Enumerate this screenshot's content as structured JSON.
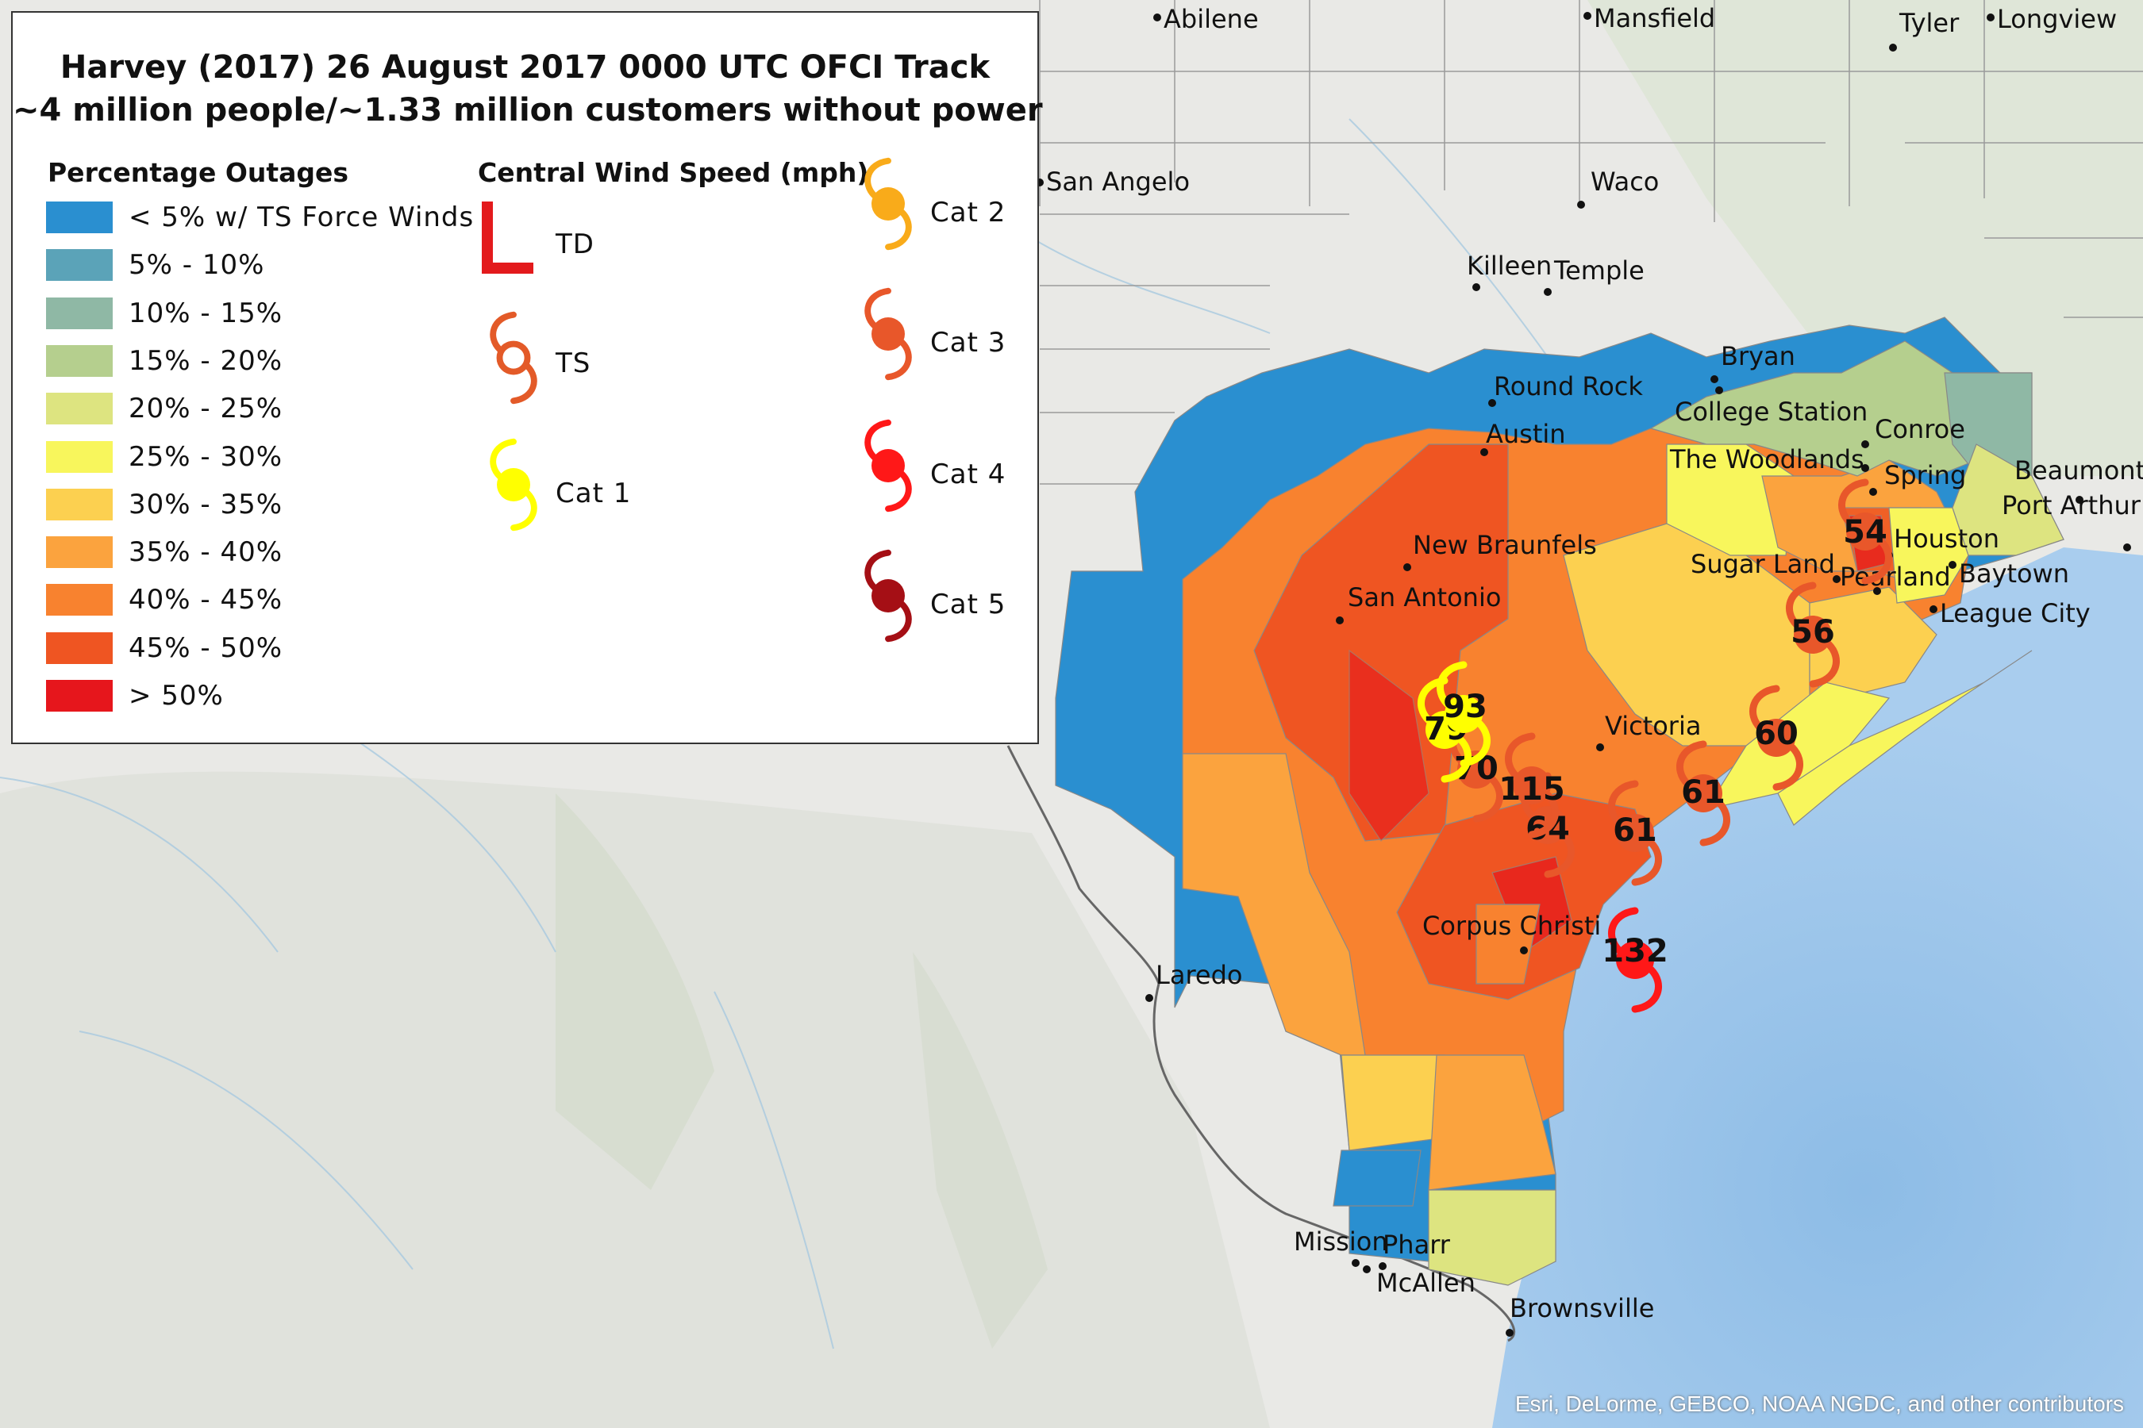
{
  "title_line1": "Harvey (2017) 26 August 2017 0000 UTC OFCI Track",
  "title_line2": "~4 million people/~1.33 million customers without power",
  "legend": {
    "outage_heading": "Percentage Outages",
    "outage_classes": [
      {
        "label": "< 5% w/ TS Force Winds",
        "color": "#2a8fd0"
      },
      {
        "label": "5% - 10%",
        "color": "#5ba3b8"
      },
      {
        "label": "10% - 15%",
        "color": "#8fb8a5"
      },
      {
        "label": "15% - 20%",
        "color": "#b5cf8e"
      },
      {
        "label": "20% - 25%",
        "color": "#dde480"
      },
      {
        "label": "25% - 30%",
        "color": "#f8f65c"
      },
      {
        "label": "30% - 35%",
        "color": "#fcd050"
      },
      {
        "label": "35% - 40%",
        "color": "#fba33e"
      },
      {
        "label": "40% - 45%",
        "color": "#f8822f"
      },
      {
        "label": "45% - 50%",
        "color": "#ef5522"
      },
      {
        "label": "> 50%",
        "color": "#e6161c"
      }
    ],
    "wind_heading": "Central Wind Speed (mph)",
    "wind_classes": [
      {
        "label": "TD",
        "color": "#e31a1c",
        "icon": "low-L-icon"
      },
      {
        "label": "TS",
        "color": "#e35a28",
        "icon": "tropical-storm-icon"
      },
      {
        "label": "Cat 1",
        "color": "#ffff00",
        "icon": "hurricane-cat1-icon"
      },
      {
        "label": "Cat 2",
        "color": "#f9ab1a",
        "icon": "hurricane-cat2-icon"
      },
      {
        "label": "Cat 3",
        "color": "#e8572a",
        "icon": "hurricane-cat3-icon"
      },
      {
        "label": "Cat 4",
        "color": "#ff1818",
        "icon": "hurricane-cat4-icon"
      },
      {
        "label": "Cat 5",
        "color": "#a50f15",
        "icon": "hurricane-cat5-icon"
      }
    ]
  },
  "cities": [
    "Abilene",
    "Mansfield",
    "Tyler",
    "Longview",
    "San Angelo",
    "Waco",
    "Killeen",
    "Temple",
    "Bryan",
    "Round Rock",
    "College Station",
    "Conroe",
    "Austin",
    "The Woodlands",
    "Spring",
    "Beaumont",
    "Port Arthur",
    "Houston",
    "New Braunfels",
    "Sugar Land",
    "Baytown",
    "Pearland",
    "San Antonio",
    "League City",
    "Victoria",
    "Corpus Christi",
    "Laredo",
    "Mission",
    "Pharr",
    "McAllen",
    "Brownsville"
  ],
  "track_points": [
    {
      "speed": "132",
      "category": "Cat 4"
    },
    {
      "speed": "61",
      "category": "Cat 3"
    },
    {
      "speed": "64",
      "category": "Cat 3"
    },
    {
      "speed": "115",
      "category": "Cat 3"
    },
    {
      "speed": "70",
      "category": "Cat 3"
    },
    {
      "speed": "79",
      "category": "Cat 1"
    },
    {
      "speed": "93",
      "category": "Cat 1"
    },
    {
      "speed": "61",
      "category": "Cat 3"
    },
    {
      "speed": "60",
      "category": "Cat 3"
    },
    {
      "speed": "56",
      "category": "Cat 3"
    },
    {
      "speed": "54",
      "category": "Cat 3"
    }
  ],
  "attribution": "Esri, DeLorme, GEBCO, NOAA NGDC, and other contributors",
  "colors": {
    "land": "#e9e9e6",
    "ocean": "#a6ccef",
    "deep_ocean": "#8dbce6",
    "boundary": "#9a9a9a"
  }
}
